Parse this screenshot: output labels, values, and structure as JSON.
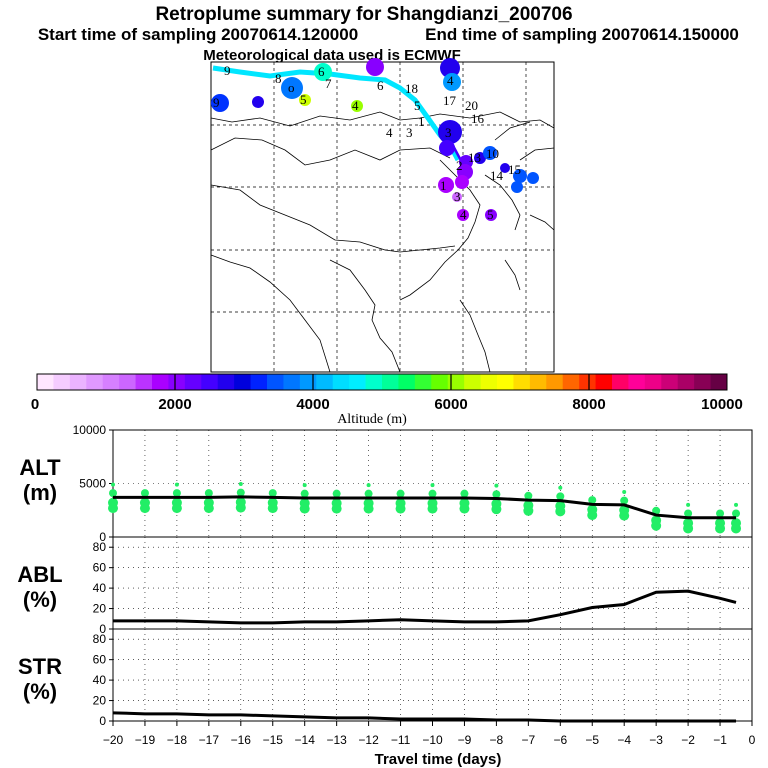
{
  "header": {
    "title": "Retroplume summary for Shangdianzi_200706",
    "start_label": "Start time of sampling 20070614.120000",
    "end_label": "End time of sampling 20070614.150000",
    "met_label": "Meteorological data used is ECMWF"
  },
  "map": {
    "markers": [
      {
        "label": "9",
        "lon": -0.95,
        "lat": 0.03,
        "color": "#0033ff",
        "size": 9
      },
      {
        "label": "8",
        "lon": -0.72,
        "lat": 0.05,
        "color": "#0066ff",
        "size": 8
      },
      {
        "label": "6",
        "lon": -0.5,
        "lat": 0.02,
        "color": "#00e6e6",
        "size": 8
      },
      {
        "label": "7",
        "lon": -0.2,
        "lat": 0.02,
        "color": "#8800ff",
        "size": 9
      },
      {
        "label": "5",
        "lon": -0.62,
        "lat": 0.1,
        "color": "#ccee00",
        "size": 6
      },
      {
        "label": "4",
        "lon": -0.38,
        "lat": 0.11,
        "color": "#99dd00",
        "size": 6
      },
      {
        "label": "4",
        "lon": 0.0,
        "lat": 0.06,
        "color": "#0088ff",
        "size": 8
      },
      {
        "label": "3",
        "lon": -0.05,
        "lat": 0.22,
        "color": "#0000dd",
        "size": 11
      },
      {
        "label": "2",
        "lon": 0.04,
        "lat": 0.32,
        "color": "#7700ff",
        "size": 8
      },
      {
        "label": "1",
        "lon": 0.1,
        "lat": 0.38,
        "color": "#aa00ff",
        "size": 7
      }
    ],
    "trajectory_color": "#00e6ff"
  },
  "colorbar": {
    "ticks": [
      "0",
      "2000",
      "4000",
      "6000",
      "8000",
      "10000"
    ],
    "label": "Altitude (m)",
    "colors": [
      "#ffe6ff",
      "#f5ccff",
      "#ebb3ff",
      "#e099ff",
      "#d680ff",
      "#cc66ff",
      "#bb33ff",
      "#aa00ff",
      "#8800ff",
      "#6600ff",
      "#4400ff",
      "#2200ee",
      "#0000dd",
      "#0022ff",
      "#0055ff",
      "#0077ff",
      "#0099ff",
      "#00bbff",
      "#00ddff",
      "#00eeff",
      "#00ffcc",
      "#00ff99",
      "#00ff66",
      "#33ff33",
      "#66ff00",
      "#99ff00",
      "#ccff00",
      "#eeff00",
      "#ffff00",
      "#ffdd00",
      "#ffbb00",
      "#ff9900",
      "#ff6600",
      "#ff3300",
      "#ff0000",
      "#ff0066",
      "#ff0099",
      "#ee0088",
      "#cc0077",
      "#aa0066",
      "#880055",
      "#660044"
    ]
  },
  "chart_data": [
    {
      "type": "scatter+line",
      "panel_label": "ALT\n(m)",
      "label_line1": "ALT",
      "label_line2": "(m)",
      "ylim": [
        0,
        10000
      ],
      "yticks": [
        "0",
        "5000",
        "10000"
      ],
      "xlim": [
        -20,
        0
      ],
      "xticks": [
        "−20",
        "−19",
        "−18",
        "−17",
        "−16",
        "−15",
        "−14",
        "−13",
        "−12",
        "−11",
        "−10",
        "−9",
        "−8",
        "−7",
        "−6",
        "−5",
        "−4",
        "−3",
        "−2",
        "−1",
        "0"
      ],
      "line": {
        "x": [
          -20,
          -19,
          -18,
          -17,
          -16,
          -15,
          -14,
          -13,
          -12,
          -11,
          -10,
          -9,
          -8,
          -7,
          -6,
          -5,
          -4,
          -3,
          -2,
          -1,
          -0.5
        ],
        "y": [
          3700,
          3700,
          3700,
          3700,
          3750,
          3700,
          3650,
          3650,
          3650,
          3650,
          3650,
          3650,
          3600,
          3450,
          3400,
          3050,
          3000,
          2050,
          1800,
          1800,
          1800
        ]
      },
      "dots_x": [
        -20,
        -19,
        -18,
        -17,
        -16,
        -15,
        -14,
        -13,
        -12,
        -11,
        -10,
        -9,
        -8,
        -7,
        -6,
        -5,
        -4,
        -3,
        -2,
        -1,
        -0.5
      ],
      "dots_color": "#22ee66"
    },
    {
      "type": "line",
      "label_line1": "ABL",
      "label_line2": "(%)",
      "ylim": [
        0,
        90
      ],
      "yticks": [
        "0",
        "20",
        "40",
        "60",
        "80"
      ],
      "x": [
        -20,
        -19,
        -18,
        -17,
        -16,
        -15,
        -14,
        -13,
        -12,
        -11,
        -10,
        -9,
        -8,
        -7,
        -6,
        -5,
        -4,
        -3,
        -2,
        -1,
        -0.5
      ],
      "y": [
        8,
        8,
        8,
        7,
        6,
        6,
        7,
        7,
        8,
        9,
        8,
        7,
        7,
        8,
        14,
        21,
        24,
        36,
        37,
        30,
        26
      ]
    },
    {
      "type": "line",
      "label_line1": "STR",
      "label_line2": "(%)",
      "ylim": [
        0,
        90
      ],
      "yticks": [
        "0",
        "20",
        "40",
        "60",
        "80"
      ],
      "x": [
        -20,
        -19,
        -18,
        -17,
        -16,
        -15,
        -14,
        -13,
        -12,
        -11,
        -10,
        -9,
        -8,
        -7,
        -6,
        -5,
        -4,
        -3,
        -2,
        -1,
        -0.5
      ],
      "y": [
        8,
        7,
        7,
        6,
        6,
        5,
        4,
        3,
        3,
        2,
        2,
        2,
        1,
        1,
        0,
        0,
        0,
        0,
        0,
        0,
        0
      ]
    }
  ],
  "xaxis": {
    "label": "Travel time (days)"
  }
}
